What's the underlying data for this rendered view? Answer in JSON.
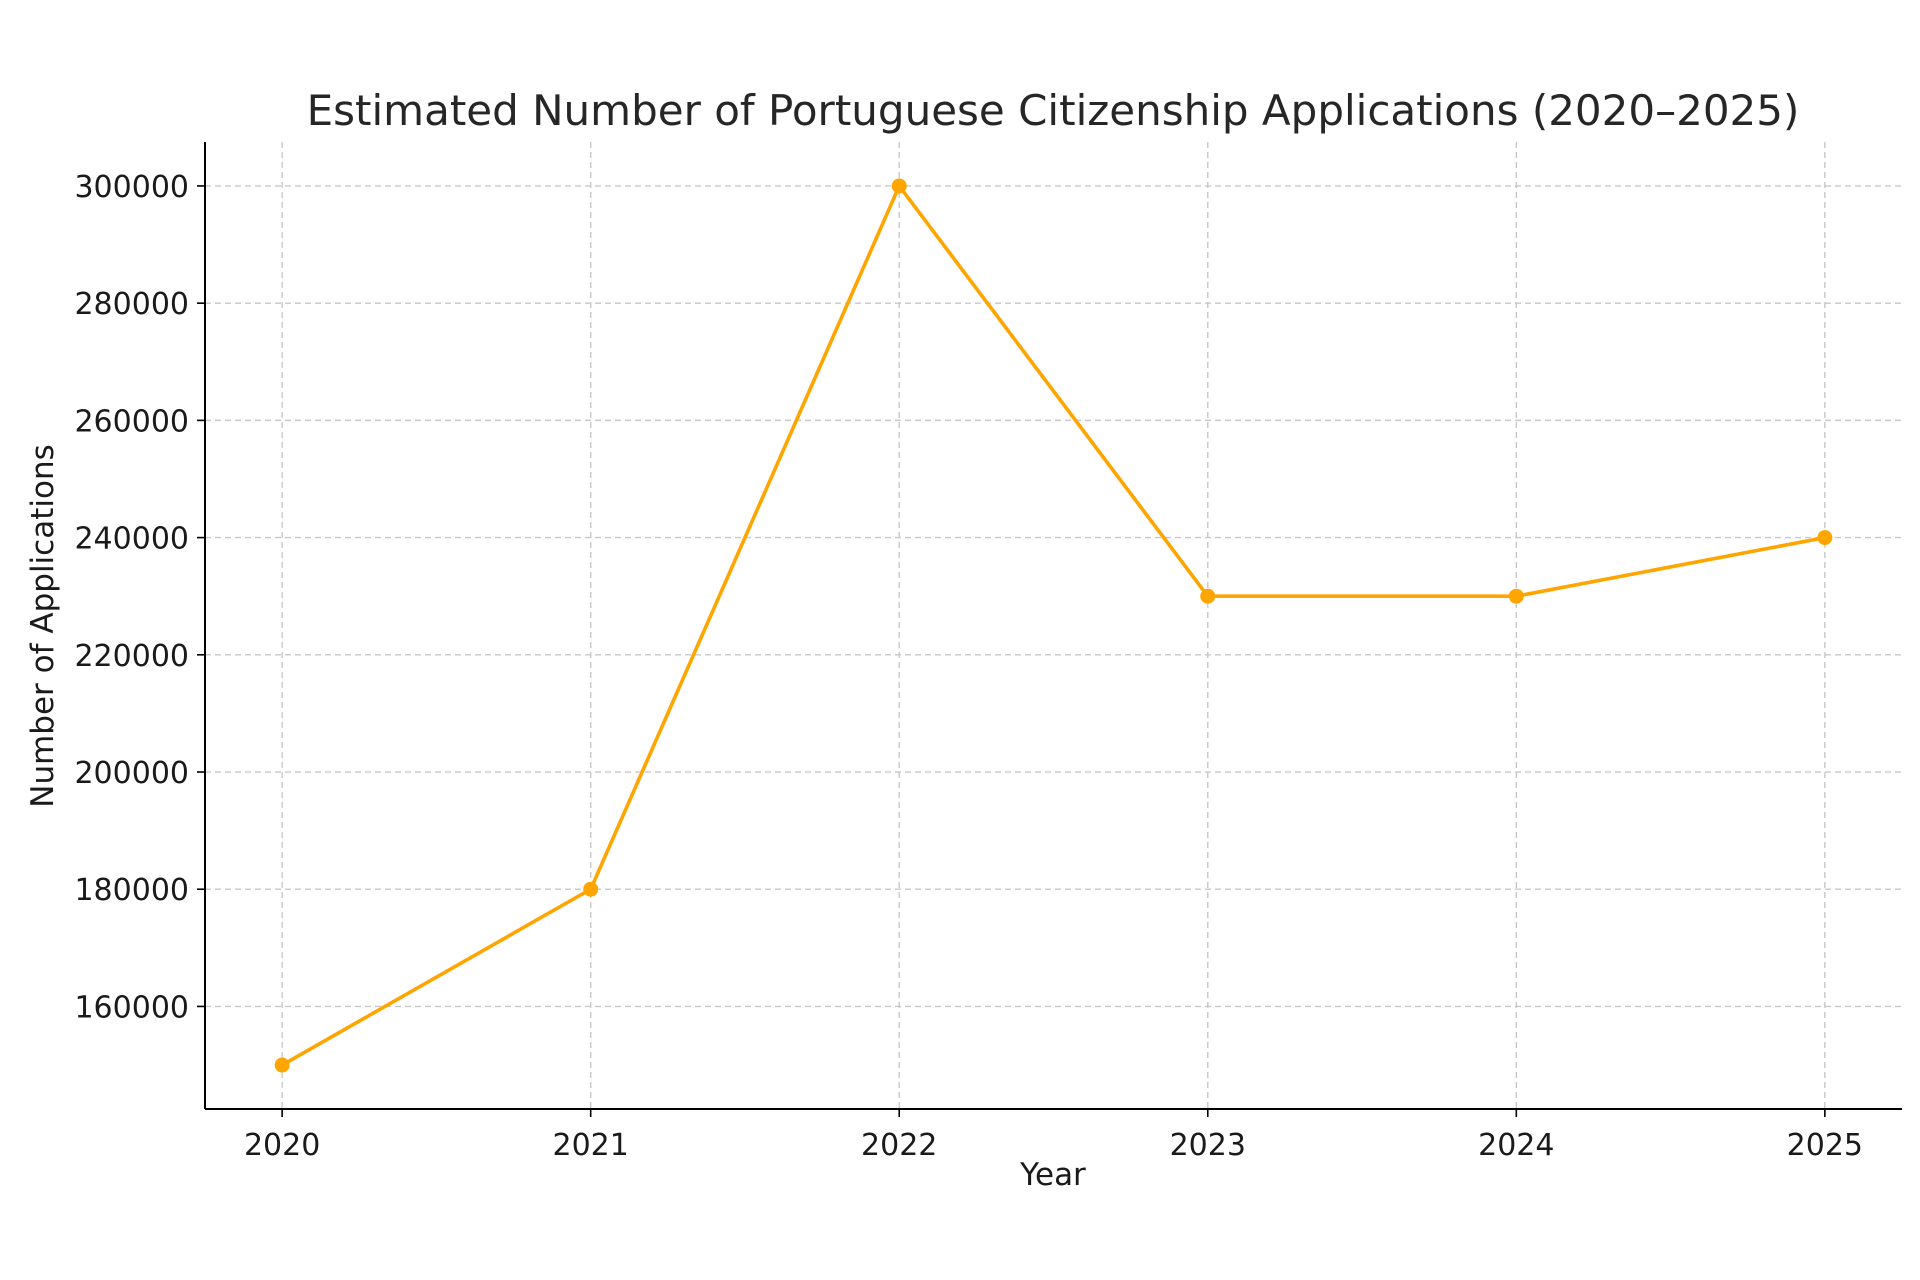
{
  "chart_data": {
    "type": "line",
    "title": "Estimated Number of Portuguese Citizenship Applications (2020–2025)",
    "xlabel": "Year",
    "ylabel": "Number of Applications",
    "x": [
      2020,
      2021,
      2022,
      2023,
      2024,
      2025
    ],
    "x_tick_labels": [
      "2020",
      "2021",
      "2022",
      "2023",
      "2024",
      "2025"
    ],
    "series": [
      {
        "values": [
          150000,
          180000,
          300000,
          230000,
          230000,
          240000
        ],
        "color": "#FFA500",
        "marker": "circle"
      }
    ],
    "y_ticks": [
      160000,
      180000,
      200000,
      220000,
      240000,
      260000,
      280000,
      300000
    ],
    "y_tick_labels": [
      "160000",
      "180000",
      "200000",
      "220000",
      "240000",
      "260000",
      "280000",
      "300000"
    ],
    "xlim": [
      2019.75,
      2025.25
    ],
    "ylim": [
      142500,
      307500
    ],
    "grid": true,
    "grid_style": "dashed",
    "colors": {
      "line": "#FFA500",
      "grid": "#c8c8c8",
      "axis": "#000000"
    }
  }
}
